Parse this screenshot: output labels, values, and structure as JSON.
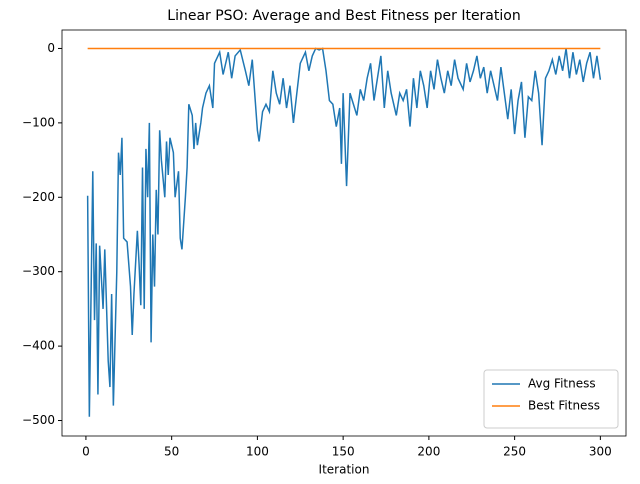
{
  "chart_data": {
    "type": "line",
    "title": "Linear PSO: Average and Best Fitness per Iteration",
    "xlabel": "Iteration",
    "x": [
      1,
      2,
      4,
      5,
      6,
      7,
      8,
      10,
      11,
      13,
      14,
      15,
      16,
      18,
      19,
      20,
      21,
      22,
      24,
      26,
      27,
      28,
      30,
      31,
      32,
      33,
      34,
      35,
      36,
      37,
      38,
      39,
      40,
      41,
      42,
      43,
      44,
      46,
      47,
      48,
      49,
      51,
      52,
      54,
      55,
      56,
      58,
      59,
      60,
      62,
      63,
      64,
      65,
      67,
      68,
      70,
      72,
      74,
      75,
      78,
      80,
      83,
      85,
      87,
      90,
      93,
      95,
      97,
      100,
      101,
      103,
      105,
      107,
      109,
      111,
      113,
      115,
      117,
      119,
      121,
      123,
      125,
      128,
      130,
      132,
      134,
      136,
      138,
      140,
      142,
      144,
      146,
      148,
      149,
      150,
      152,
      154,
      156,
      158,
      160,
      162,
      164,
      166,
      168,
      170,
      172,
      174,
      176,
      178,
      181,
      183,
      185,
      187,
      189,
      191,
      193,
      195,
      197,
      199,
      201,
      203,
      205,
      207,
      209,
      211,
      213,
      215,
      217,
      220,
      222,
      224,
      226,
      228,
      230,
      232,
      234,
      236,
      238,
      240,
      242,
      244,
      246,
      248,
      250,
      252,
      254,
      256,
      258,
      260,
      262,
      264,
      266,
      268,
      270,
      272,
      274,
      276,
      278,
      280,
      282,
      284,
      286,
      288,
      290,
      292,
      294,
      296,
      298,
      300
    ],
    "series": [
      {
        "name": "Avg Fitness",
        "color": "#1f77b4",
        "values": [
          -198,
          -495,
          -165,
          -365,
          -262,
          -465,
          -265,
          -350,
          -270,
          -420,
          -455,
          -330,
          -480,
          -300,
          -140,
          -170,
          -120,
          -255,
          -260,
          -320,
          -385,
          -330,
          -245,
          -290,
          -345,
          -160,
          -350,
          -135,
          -200,
          -100,
          -395,
          -250,
          -320,
          -190,
          -250,
          -110,
          -150,
          -200,
          -125,
          -170,
          -120,
          -140,
          -200,
          -165,
          -255,
          -270,
          -200,
          -160,
          -75,
          -90,
          -135,
          -100,
          -130,
          -100,
          -80,
          -60,
          -50,
          -80,
          -20,
          -5,
          -35,
          -5,
          -40,
          -10,
          -2,
          -30,
          -50,
          -15,
          -110,
          -125,
          -85,
          -75,
          -85,
          -30,
          -60,
          -75,
          -40,
          -80,
          -50,
          -100,
          -60,
          -20,
          -5,
          -30,
          -10,
          0,
          -2,
          0,
          -30,
          -70,
          -75,
          -105,
          -80,
          -155,
          -60,
          -185,
          -60,
          -75,
          -90,
          -55,
          -70,
          -40,
          -20,
          -70,
          -40,
          -10,
          -80,
          -30,
          -60,
          -90,
          -60,
          -70,
          -55,
          -105,
          -40,
          -80,
          -30,
          -50,
          -80,
          -30,
          -55,
          -15,
          -40,
          -60,
          -30,
          -50,
          -15,
          -40,
          -55,
          -20,
          -45,
          -30,
          -10,
          -40,
          -25,
          -60,
          -30,
          -50,
          -70,
          -25,
          -60,
          -95,
          -55,
          -115,
          -70,
          -45,
          -120,
          -65,
          -70,
          -30,
          -60,
          -130,
          -40,
          -30,
          -15,
          -35,
          -10,
          -30,
          0,
          -40,
          -5,
          -35,
          -15,
          -45,
          -20,
          -5,
          -40,
          -10,
          -42
        ]
      },
      {
        "name": "Best Fitness",
        "color": "#ff7f0e",
        "values": [
          0,
          0,
          0,
          0,
          0,
          0,
          0,
          0,
          0,
          0,
          0,
          0,
          0,
          0,
          0,
          0,
          0,
          0,
          0,
          0,
          0,
          0,
          0,
          0,
          0,
          0,
          0,
          0,
          0,
          0,
          0,
          0,
          0,
          0,
          0,
          0,
          0,
          0,
          0,
          0,
          0,
          0,
          0,
          0,
          0,
          0,
          0,
          0,
          0,
          0,
          0,
          0,
          0,
          0,
          0,
          0,
          0,
          0,
          0,
          0,
          0,
          0,
          0,
          0,
          0,
          0,
          0,
          0,
          0,
          0,
          0,
          0,
          0,
          0,
          0,
          0,
          0,
          0,
          0,
          0,
          0,
          0,
          0,
          0,
          0,
          0,
          0,
          0,
          0,
          0,
          0,
          0,
          0,
          0,
          0,
          0,
          0,
          0,
          0,
          0,
          0,
          0,
          0,
          0,
          0,
          0,
          0,
          0,
          0,
          0,
          0,
          0,
          0,
          0,
          0,
          0,
          0,
          0,
          0,
          0,
          0,
          0,
          0,
          0,
          0,
          0,
          0,
          0,
          0,
          0,
          0,
          0,
          0,
          0,
          0,
          0,
          0,
          0,
          0,
          0,
          0,
          0,
          0,
          0,
          0,
          0,
          0,
          0,
          0,
          0,
          0,
          0,
          0,
          0,
          0,
          0,
          0,
          0,
          0,
          0,
          0,
          0,
          0,
          0,
          0,
          0,
          0,
          0,
          0
        ]
      }
    ],
    "xlim": [
      -13.95,
      314.95
    ],
    "xticks": [
      0,
      50,
      100,
      150,
      200,
      250,
      300
    ],
    "ylim": [
      -520.8,
      24.8
    ],
    "yticks": [
      {
        "value": -500,
        "label": "−500"
      },
      {
        "value": -400,
        "label": "−400"
      },
      {
        "value": -300,
        "label": "−300"
      },
      {
        "value": -200,
        "label": "−200"
      },
      {
        "value": -100,
        "label": "−100"
      },
      0
    ],
    "legend": "lower right",
    "grid": false
  }
}
